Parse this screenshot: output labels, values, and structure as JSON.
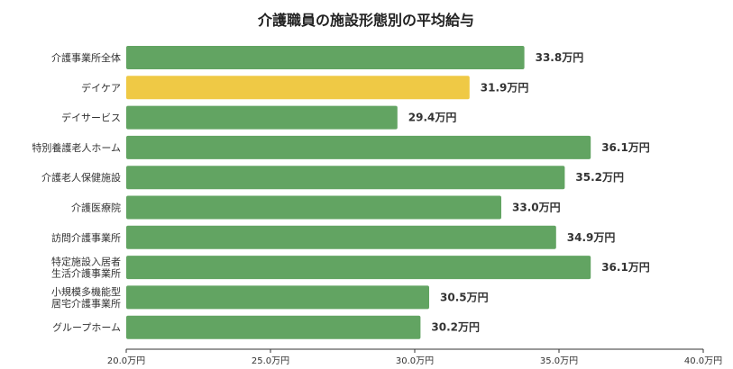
{
  "chart_data": {
    "type": "bar",
    "orientation": "horizontal",
    "title": "介護職員の施設形態別の平均給与",
    "categories": [
      [
        "介護事業所全体"
      ],
      [
        "デイケア"
      ],
      [
        "デイサービス"
      ],
      [
        "特別養護老人ホーム"
      ],
      [
        "介護老人保健施設"
      ],
      [
        "介護医療院"
      ],
      [
        "訪問介護事業所"
      ],
      [
        "特定施設入居者",
        "生活介護事業所"
      ],
      [
        "小規模多機能型",
        "居宅介護事業所"
      ],
      [
        "グループホーム"
      ]
    ],
    "values": [
      33.8,
      31.9,
      29.4,
      36.1,
      35.2,
      33.0,
      34.9,
      36.1,
      30.5,
      30.2
    ],
    "value_labels": [
      "33.8万円",
      "31.9万円",
      "29.4万円",
      "36.1万円",
      "35.2万円",
      "33.0万円",
      "34.9万円",
      "36.1万円",
      "30.5万円",
      "30.2万円"
    ],
    "highlight_index": 1,
    "xlim": [
      20,
      40
    ],
    "x_ticks": [
      20,
      25,
      30,
      35,
      40
    ],
    "x_tick_labels": [
      "20.0万円",
      "25.0万円",
      "30.0万円",
      "35.0万円",
      "40.0万円"
    ],
    "grid": false,
    "colors": {
      "bar": "#62a462",
      "highlight": "#efc945",
      "axis": "#333333"
    }
  }
}
